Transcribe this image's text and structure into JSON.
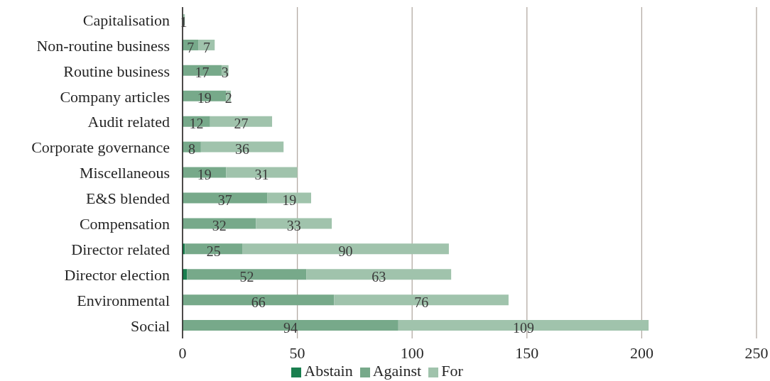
{
  "chart_data": {
    "type": "bar",
    "orientation": "horizontal",
    "stacked": true,
    "categories": [
      "Capitalisation",
      "Non-routine business",
      "Routine business",
      "Company articles",
      "Audit related",
      "Corporate governance",
      "Miscellaneous",
      "E&S blended",
      "Compensation",
      "Director related",
      "Director election",
      "Environmental",
      "Social"
    ],
    "series": [
      {
        "name": "Abstain",
        "color": "#1a7f4f",
        "values": [
          null,
          null,
          null,
          null,
          null,
          null,
          null,
          null,
          null,
          1,
          2,
          null,
          null
        ]
      },
      {
        "name": "Against",
        "color": "#77a98a",
        "values": [
          null,
          7,
          17,
          19,
          12,
          8,
          19,
          37,
          32,
          25,
          52,
          66,
          94
        ],
        "value_labels": [
          null,
          "7",
          "17",
          "19",
          "12",
          "8",
          "19",
          "37",
          "32",
          "25",
          "52",
          "66",
          "94"
        ]
      },
      {
        "name": "For",
        "color": "#a0c3ac",
        "values": [
          1,
          7,
          3,
          2,
          27,
          36,
          31,
          19,
          33,
          90,
          63,
          76,
          109
        ],
        "value_labels": [
          "1",
          "7",
          "3",
          "2",
          "27",
          "36",
          "31",
          "19",
          "33",
          "90",
          "63",
          "76",
          "109"
        ]
      }
    ],
    "xlim": [
      0,
      250
    ],
    "xticks": [
      0,
      50,
      100,
      150,
      200,
      250
    ],
    "grid": "x",
    "legend": "bottom"
  }
}
